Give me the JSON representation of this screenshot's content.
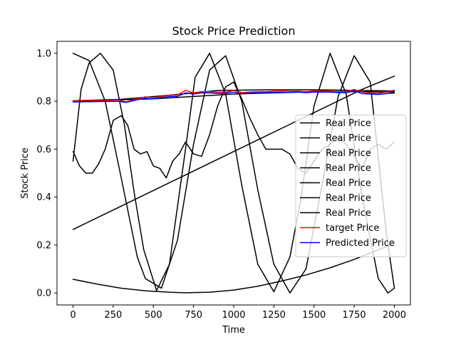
{
  "chart_data": {
    "type": "line",
    "title": "Stock Price Prediction",
    "xlabel": "Time",
    "ylabel": "Stock Price",
    "xlim": [
      -100,
      2100
    ],
    "ylim": [
      -0.05,
      1.05
    ],
    "x_ticks": [
      0,
      250,
      500,
      750,
      1000,
      1250,
      1500,
      1750,
      2000
    ],
    "x_tick_labels": [
      "0",
      "250",
      "500",
      "750",
      "1000",
      "1250",
      "1500",
      "1750",
      "2000"
    ],
    "y_ticks": [
      0.0,
      0.2,
      0.4,
      0.6,
      0.8,
      1.0
    ],
    "y_tick_labels": [
      "0.0",
      "0.2",
      "0.4",
      "0.6",
      "0.8",
      "1.0"
    ],
    "grid": false,
    "legend_position": "center-right",
    "series": [
      {
        "name": "Real Price",
        "color": "#000000",
        "x": [
          0,
          200,
          400,
          600,
          800,
          1000,
          1200,
          1400,
          1600,
          1800,
          2000
        ],
        "y": [
          0.265,
          0.33,
          0.395,
          0.46,
          0.525,
          0.59,
          0.655,
          0.72,
          0.785,
          0.85,
          0.905
        ]
      },
      {
        "name": "Real Price",
        "color": "#000000",
        "x": [
          0,
          150,
          300,
          450,
          600,
          700,
          850,
          1000,
          1150,
          1300,
          1450,
          1600,
          1750,
          1900,
          2000
        ],
        "y": [
          0.057,
          0.037,
          0.02,
          0.009,
          0.003,
          0.001,
          0.003,
          0.012,
          0.028,
          0.05,
          0.075,
          0.105,
          0.14,
          0.18,
          0.208
        ]
      },
      {
        "name": "Real Price",
        "color": "#000000",
        "x": [
          0,
          100,
          200,
          300,
          400,
          450,
          550,
          650,
          750,
          850,
          950,
          1050,
          1150,
          1250,
          1350,
          1450,
          1550,
          1650,
          1750,
          1850,
          1950,
          2000
        ],
        "y": [
          1.0,
          0.97,
          0.8,
          0.48,
          0.15,
          0.06,
          0.02,
          0.22,
          0.62,
          0.93,
          0.99,
          0.8,
          0.43,
          0.12,
          0.0,
          0.1,
          0.45,
          0.82,
          0.99,
          0.88,
          0.25,
          0.02
        ]
      },
      {
        "name": "Real Price",
        "color": "#000000",
        "x": [
          0,
          50,
          100,
          170,
          250,
          320,
          380,
          440,
          520,
          600,
          700,
          760,
          850,
          950,
          1050,
          1150,
          1250,
          1350,
          1420,
          1500,
          1600,
          1700,
          1800,
          1900,
          1960,
          2000
        ],
        "y": [
          0.55,
          0.85,
          0.96,
          1.0,
          0.93,
          0.7,
          0.42,
          0.18,
          0.01,
          0.12,
          0.6,
          0.9,
          1.0,
          0.83,
          0.45,
          0.12,
          0.005,
          0.15,
          0.4,
          0.78,
          1.0,
          0.83,
          0.4,
          0.06,
          0.0,
          0.02
        ]
      },
      {
        "name": "Real Price",
        "color": "#000000",
        "x": [
          0,
          40,
          80,
          120,
          160,
          200,
          250,
          300,
          340,
          380,
          420,
          460,
          500,
          540,
          580,
          620,
          660,
          700,
          750,
          800,
          850,
          900,
          950,
          1000,
          1050,
          1100,
          1150,
          1200,
          1250,
          1300,
          1350,
          1400,
          1450,
          1500,
          1550,
          1600,
          1650,
          1700,
          1750,
          1800,
          1850,
          1900,
          1950,
          2000
        ],
        "y": [
          0.59,
          0.53,
          0.5,
          0.5,
          0.54,
          0.6,
          0.72,
          0.74,
          0.7,
          0.6,
          0.58,
          0.59,
          0.53,
          0.52,
          0.48,
          0.55,
          0.58,
          0.63,
          0.58,
          0.57,
          0.66,
          0.78,
          0.86,
          0.88,
          0.81,
          0.73,
          0.66,
          0.6,
          0.6,
          0.6,
          0.58,
          0.52,
          0.5,
          0.55,
          0.6,
          0.62,
          0.65,
          0.62,
          0.57,
          0.52,
          0.6,
          0.62,
          0.6,
          0.63
        ]
      },
      {
        "name": "Real Price",
        "color": "#000000",
        "x": [
          0,
          250,
          500,
          750,
          1000,
          1250,
          1500,
          1750,
          2000
        ],
        "y": [
          0.8,
          0.805,
          0.81,
          0.82,
          0.83,
          0.835,
          0.84,
          0.84,
          0.838
        ]
      },
      {
        "name": "Real Price",
        "color": "#000000",
        "x": [
          0,
          300,
          600,
          900,
          1200,
          1500,
          1800,
          2000
        ],
        "y": [
          0.802,
          0.808,
          0.825,
          0.845,
          0.848,
          0.848,
          0.845,
          0.843
        ]
      },
      {
        "name": "target Price",
        "color": "#ff0000",
        "x": [
          0,
          100,
          200,
          280,
          330,
          400,
          450,
          500,
          550,
          600,
          650,
          700,
          750,
          800,
          850,
          900,
          950,
          1000,
          1050,
          1100,
          1150,
          1200,
          1250,
          1300,
          1350,
          1400,
          1450,
          1500,
          1550,
          1600,
          1650,
          1700,
          1750,
          1800,
          1850,
          1900,
          1950,
          2000
        ],
        "y": [
          0.801,
          0.802,
          0.803,
          0.806,
          0.797,
          0.81,
          0.818,
          0.815,
          0.82,
          0.825,
          0.826,
          0.845,
          0.835,
          0.84,
          0.84,
          0.838,
          0.837,
          0.845,
          0.836,
          0.838,
          0.84,
          0.84,
          0.842,
          0.843,
          0.842,
          0.842,
          0.84,
          0.843,
          0.843,
          0.842,
          0.84,
          0.84,
          0.849,
          0.838,
          0.834,
          0.833,
          0.838,
          0.846
        ]
      },
      {
        "name": "Predicted Price",
        "color": "#0000ff",
        "x": [
          0,
          100,
          200,
          280,
          330,
          400,
          450,
          500,
          550,
          600,
          650,
          700,
          750,
          800,
          850,
          900,
          950,
          1000,
          1050,
          1100,
          1150,
          1200,
          1250,
          1300,
          1350,
          1400,
          1450,
          1500,
          1550,
          1600,
          1650,
          1700,
          1750,
          1800,
          1850,
          1900,
          1950,
          2000
        ],
        "y": [
          0.797,
          0.798,
          0.799,
          0.8,
          0.795,
          0.806,
          0.812,
          0.81,
          0.815,
          0.82,
          0.82,
          0.835,
          0.83,
          0.835,
          0.835,
          0.833,
          0.833,
          0.838,
          0.832,
          0.834,
          0.835,
          0.836,
          0.837,
          0.837,
          0.837,
          0.838,
          0.836,
          0.838,
          0.838,
          0.838,
          0.836,
          0.836,
          0.843,
          0.832,
          0.83,
          0.828,
          0.832,
          0.834
        ]
      }
    ]
  }
}
